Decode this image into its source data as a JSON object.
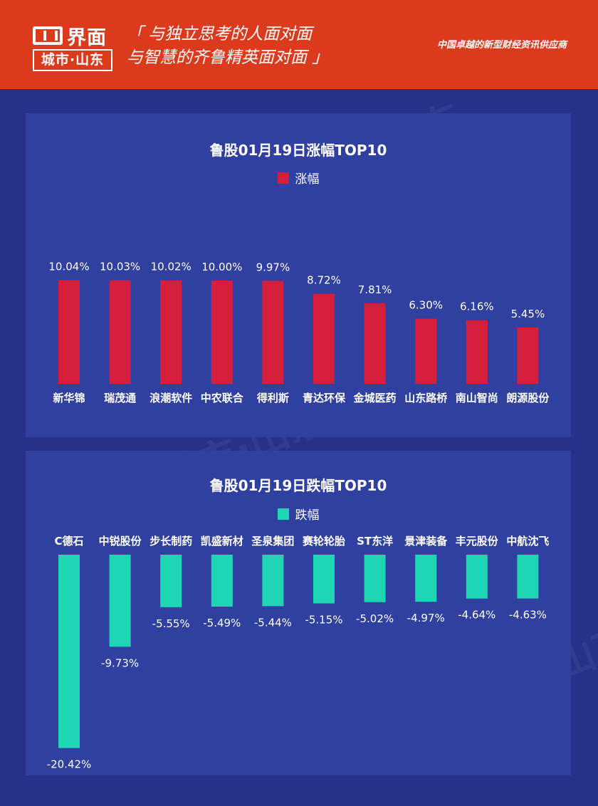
{
  "header": {
    "brand": "界面",
    "sub_brand": "城市·山东",
    "slogan_line1": "「 与独立思考的人面对面",
    "slogan_line2": "与智慧的齐鲁精英面对面 」",
    "tagline": "中国卓越的新型财经资讯供应商"
  },
  "colors": {
    "header_bg": "#dc3a1c",
    "page_bg": "#26318a",
    "panel_bg": "#3040a0",
    "gain_bar": "#d61f3c",
    "loss_bar": "#1fd6b4"
  },
  "chart_data": [
    {
      "type": "bar",
      "title": "鲁股01月19日涨幅TOP10",
      "legend": "涨幅",
      "categories": [
        "新华锦",
        "瑞茂通",
        "浪潮软件",
        "中农联合",
        "得利斯",
        "青达环保",
        "金城医药",
        "山东路桥",
        "南山智尚",
        "朗源股份"
      ],
      "values": [
        10.04,
        10.03,
        10.02,
        10.0,
        9.97,
        8.72,
        7.81,
        6.3,
        6.16,
        5.45
      ],
      "value_labels": [
        "10.04%",
        "10.03%",
        "10.02%",
        "10.00%",
        "9.97%",
        "8.72%",
        "7.81%",
        "6.30%",
        "6.16%",
        "5.45%"
      ],
      "color": "#d61f3c",
      "legend_position": "top"
    },
    {
      "type": "bar",
      "title": "鲁股01月19日跌幅TOP10",
      "legend": "跌幅",
      "categories": [
        "C德石",
        "中锐股份",
        "步长制药",
        "凯盛新材",
        "圣泉集团",
        "赛轮轮胎",
        "ST东洋",
        "景津装备",
        "丰元股份",
        "中航沈飞"
      ],
      "values": [
        -20.42,
        -9.73,
        -5.55,
        -5.49,
        -5.44,
        -5.15,
        -5.02,
        -4.97,
        -4.64,
        -4.63
      ],
      "value_labels": [
        "-20.42%",
        "-9.73%",
        "-5.55%",
        "-5.49%",
        "-5.44%",
        "-5.15%",
        "-5.02%",
        "-4.97%",
        "-4.64%",
        "-4.63%"
      ],
      "color": "#1fd6b4",
      "legend_position": "top"
    }
  ]
}
